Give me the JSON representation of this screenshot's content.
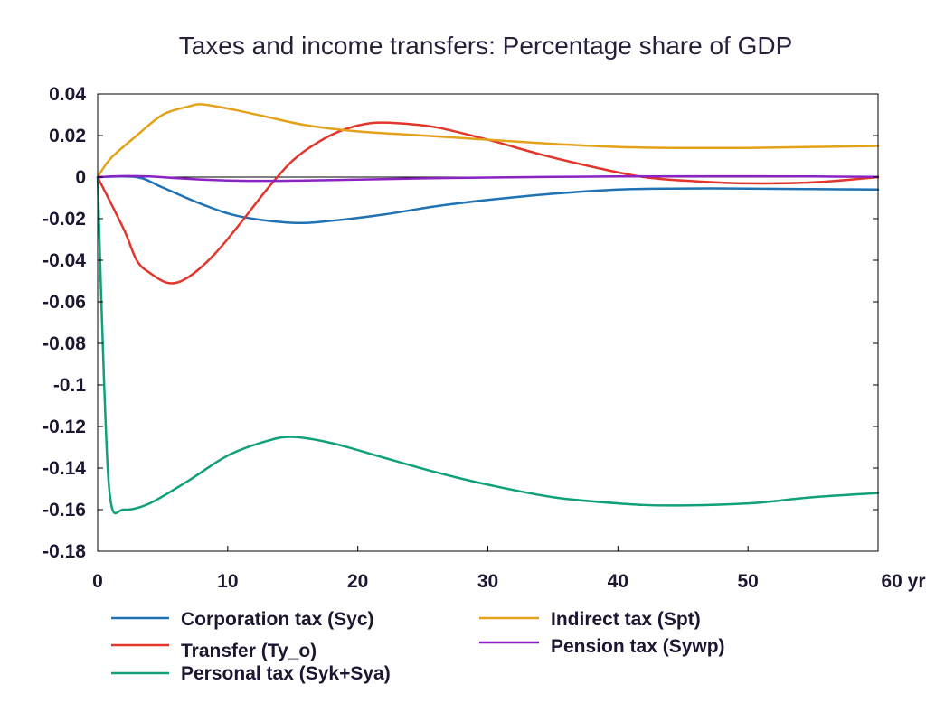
{
  "chart_data": {
    "type": "line",
    "title": "Taxes and income transfers: Percentage share of GDP",
    "xlabel": "",
    "ylabel": "",
    "xlim": [
      0,
      60
    ],
    "ylim": [
      -0.18,
      0.04
    ],
    "x_ticks": [
      0,
      10,
      20,
      30,
      40,
      50,
      60
    ],
    "x_tick_labels": [
      "0",
      "10",
      "20",
      "30",
      "40",
      "50",
      "60 yr"
    ],
    "y_ticks": [
      0.04,
      0.02,
      0,
      -0.02,
      -0.04,
      -0.06,
      -0.08,
      -0.1,
      -0.12,
      -0.14,
      -0.16,
      -0.18
    ],
    "y_tick_labels": [
      "0.04",
      "0.02",
      "0",
      "-0.02",
      "-0.04",
      "-0.06",
      "-0.08",
      "-0.1",
      "-0.12",
      "-0.14",
      "-0.16",
      "-0.18"
    ],
    "grid": false,
    "legend_position": "bottom",
    "series": [
      {
        "name": "Corporation tax (Syc)",
        "color": "#1f72b4",
        "x": [
          0,
          3,
          5,
          8,
          11,
          15,
          18,
          22,
          26,
          30,
          35,
          40,
          44,
          50,
          55,
          60
        ],
        "y": [
          0,
          0,
          -0.005,
          -0.013,
          -0.019,
          -0.022,
          -0.021,
          -0.018,
          -0.014,
          -0.011,
          -0.008,
          -0.006,
          -0.0055,
          -0.0055,
          -0.0058,
          -0.006
        ]
      },
      {
        "name": "Transfer (Ty_o)",
        "color": "#e2352b",
        "x": [
          0,
          2,
          3,
          4,
          5.5,
          7,
          9,
          11,
          13,
          15,
          17,
          19,
          21,
          23,
          26,
          30,
          34,
          38,
          42,
          46,
          50,
          55,
          60
        ],
        "y": [
          0,
          -0.025,
          -0.04,
          -0.046,
          -0.051,
          -0.048,
          -0.037,
          -0.022,
          -0.006,
          0.008,
          0.017,
          0.023,
          0.026,
          0.026,
          0.024,
          0.018,
          0.011,
          0.005,
          0.0,
          -0.002,
          -0.003,
          -0.0025,
          0.0
        ]
      },
      {
        "name": "Personal tax (Syk+Sya)",
        "color": "#10a07a",
        "x": [
          0,
          0.5,
          1,
          2,
          4,
          7,
          10,
          13,
          15,
          18,
          22,
          26,
          30,
          35,
          40,
          44,
          50,
          55,
          60
        ],
        "y": [
          0,
          -0.1,
          -0.156,
          -0.16,
          -0.157,
          -0.146,
          -0.134,
          -0.127,
          -0.125,
          -0.128,
          -0.135,
          -0.142,
          -0.148,
          -0.154,
          -0.157,
          -0.158,
          -0.157,
          -0.154,
          -0.152
        ]
      },
      {
        "name": "Indirect tax (Spt)",
        "color": "#e3a21a",
        "x": [
          0,
          1,
          3,
          5,
          7,
          8,
          10,
          13,
          16,
          20,
          25,
          30,
          35,
          40,
          45,
          50,
          55,
          60
        ],
        "y": [
          0,
          0.009,
          0.02,
          0.03,
          0.034,
          0.035,
          0.033,
          0.029,
          0.025,
          0.022,
          0.02,
          0.018,
          0.016,
          0.0145,
          0.014,
          0.014,
          0.0145,
          0.015
        ]
      },
      {
        "name": "Pension tax (Sywp)",
        "color": "#8a22c4",
        "x": [
          0,
          2,
          4,
          6,
          8,
          10,
          12,
          14,
          16,
          20,
          25,
          30,
          35,
          40,
          45,
          50,
          55,
          60
        ],
        "y": [
          0,
          0.0005,
          0.0003,
          -0.0005,
          -0.0012,
          -0.0016,
          -0.0018,
          -0.0018,
          -0.0016,
          -0.0012,
          -0.0006,
          -0.0002,
          0.0001,
          0.0003,
          0.0004,
          0.0004,
          0.0003,
          0.0001
        ]
      }
    ]
  }
}
